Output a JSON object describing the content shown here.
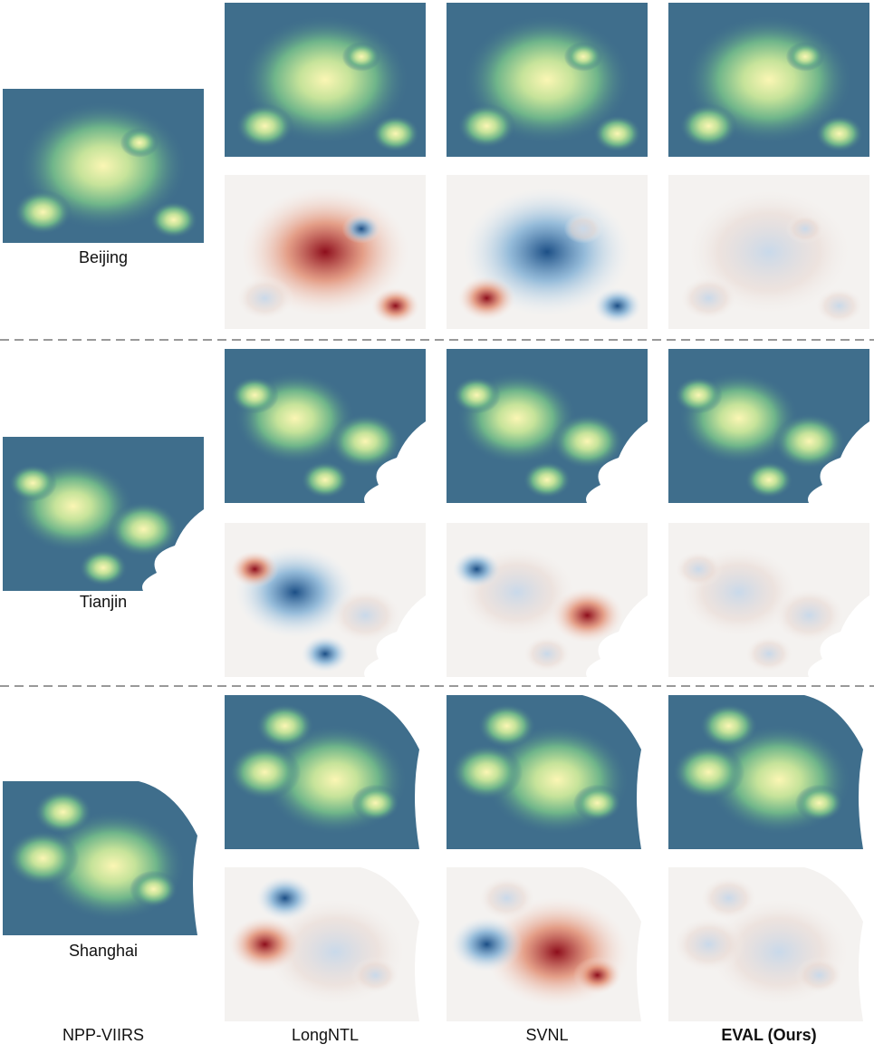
{
  "rows": [
    {
      "city": "Beijing"
    },
    {
      "city": "Tianjin"
    },
    {
      "city": "Shanghai"
    }
  ],
  "columns": [
    "NPP-VIIRS",
    "LongNTL",
    "SVNL",
    "EVAL (Ours)"
  ]
}
